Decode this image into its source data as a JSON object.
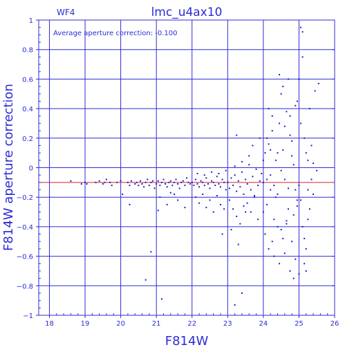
{
  "chart_data": {
    "type": "scatter",
    "title": "lmc_u4ax10",
    "corner_label": "WF4",
    "annotation": "Average aperture correction: -0.100",
    "xlabel": "F814W",
    "ylabel": "F814W aperture correction",
    "xlim": [
      17.7,
      26.0
    ],
    "ylim": [
      -1.0,
      1.0
    ],
    "grid": true,
    "x_ticks": [
      18,
      19,
      20,
      21,
      22,
      23,
      24,
      25,
      26
    ],
    "y_ticks": [
      -1,
      -0.8,
      -0.6,
      -0.4,
      -0.2,
      0,
      0.2,
      0.4,
      0.6,
      0.8,
      1
    ],
    "x_tick_labels": [
      "18",
      "19",
      "20",
      "21",
      "22",
      "23",
      "24",
      "25",
      "26"
    ],
    "y_tick_labels": [
      "−1",
      "−0.8",
      "−0.6",
      "−0.4",
      "−0.2",
      "0",
      "0.2",
      "0.4",
      "0.6",
      "0.8",
      "1"
    ],
    "reference_line": {
      "y": -0.1,
      "color": "#cc2222"
    },
    "axis_color": "#2b2bd6",
    "point_color": "#1a1acc",
    "points": [
      [
        18.6,
        -0.09
      ],
      [
        18.9,
        -0.11
      ],
      [
        19.0,
        -0.1
      ],
      [
        19.05,
        -0.11
      ],
      [
        19.3,
        -0.1
      ],
      [
        19.4,
        -0.09
      ],
      [
        19.5,
        -0.11
      ],
      [
        19.55,
        -0.1
      ],
      [
        19.6,
        -0.08
      ],
      [
        19.7,
        -0.1
      ],
      [
        19.75,
        -0.12
      ],
      [
        19.9,
        -0.1
      ],
      [
        20.0,
        -0.09
      ],
      [
        20.05,
        -0.18
      ],
      [
        20.2,
        -0.1
      ],
      [
        20.25,
        -0.12
      ],
      [
        20.3,
        -0.09
      ],
      [
        20.4,
        -0.11
      ],
      [
        20.45,
        -0.1
      ],
      [
        20.5,
        -0.12
      ],
      [
        20.55,
        -0.09
      ],
      [
        20.6,
        -0.11
      ],
      [
        20.65,
        -0.13
      ],
      [
        20.7,
        -0.1
      ],
      [
        20.75,
        -0.08
      ],
      [
        20.8,
        -0.12
      ],
      [
        20.85,
        -0.1
      ],
      [
        20.9,
        -0.09
      ],
      [
        20.95,
        -0.14
      ],
      [
        20.25,
        -0.25
      ],
      [
        20.7,
        -0.76
      ],
      [
        20.85,
        -0.57
      ],
      [
        21.0,
        -0.11
      ],
      [
        21.05,
        -0.09
      ],
      [
        21.1,
        -0.12
      ],
      [
        21.15,
        -0.1
      ],
      [
        21.2,
        -0.08
      ],
      [
        21.25,
        -0.11
      ],
      [
        21.3,
        -0.13
      ],
      [
        21.35,
        -0.1
      ],
      [
        21.4,
        -0.09
      ],
      [
        21.45,
        -0.12
      ],
      [
        21.5,
        -0.1
      ],
      [
        21.55,
        -0.08
      ],
      [
        21.6,
        -0.11
      ],
      [
        21.65,
        -0.14
      ],
      [
        21.7,
        -0.1
      ],
      [
        21.75,
        -0.09
      ],
      [
        21.8,
        -0.12
      ],
      [
        21.85,
        -0.07
      ],
      [
        21.9,
        -0.1
      ],
      [
        21.95,
        -0.11
      ],
      [
        21.1,
        -0.2
      ],
      [
        21.3,
        -0.25
      ],
      [
        21.5,
        -0.18
      ],
      [
        21.6,
        -0.22
      ],
      [
        21.8,
        -0.27
      ],
      [
        21.05,
        -0.29
      ],
      [
        21.15,
        -0.89
      ],
      [
        21.4,
        -0.17
      ],
      [
        22.0,
        -0.1
      ],
      [
        22.05,
        -0.12
      ],
      [
        22.1,
        -0.08
      ],
      [
        22.15,
        -0.11
      ],
      [
        22.2,
        -0.13
      ],
      [
        22.25,
        -0.09
      ],
      [
        22.3,
        -0.1
      ],
      [
        22.35,
        -0.12
      ],
      [
        22.4,
        -0.07
      ],
      [
        22.45,
        -0.11
      ],
      [
        22.5,
        -0.14
      ],
      [
        22.55,
        -0.09
      ],
      [
        22.6,
        -0.1
      ],
      [
        22.65,
        -0.12
      ],
      [
        22.7,
        -0.06
      ],
      [
        22.75,
        -0.11
      ],
      [
        22.8,
        -0.13
      ],
      [
        22.85,
        -0.08
      ],
      [
        22.9,
        -0.1
      ],
      [
        22.95,
        -0.15
      ],
      [
        22.1,
        -0.2
      ],
      [
        22.2,
        -0.24
      ],
      [
        22.3,
        -0.18
      ],
      [
        22.4,
        -0.27
      ],
      [
        22.5,
        -0.22
      ],
      [
        22.6,
        -0.3
      ],
      [
        22.7,
        -0.19
      ],
      [
        22.8,
        -0.25
      ],
      [
        22.9,
        -0.28
      ],
      [
        22.15,
        -0.04
      ],
      [
        22.35,
        -0.05
      ],
      [
        22.55,
        -0.03
      ],
      [
        22.75,
        -0.04
      ],
      [
        22.85,
        -0.45
      ],
      [
        22.95,
        -0.02
      ],
      [
        23.0,
        -0.1
      ],
      [
        23.05,
        -0.14
      ],
      [
        23.1,
        -0.07
      ],
      [
        23.15,
        -0.12
      ],
      [
        23.2,
        -0.05
      ],
      [
        23.25,
        -0.16
      ],
      [
        23.3,
        -0.09
      ],
      [
        23.35,
        -0.13
      ],
      [
        23.4,
        -0.03
      ],
      [
        23.45,
        -0.18
      ],
      [
        23.5,
        -0.08
      ],
      [
        23.55,
        -0.11
      ],
      [
        23.6,
        0.02
      ],
      [
        23.65,
        -0.15
      ],
      [
        23.7,
        -0.06
      ],
      [
        23.75,
        -0.2
      ],
      [
        23.8,
        -0.01
      ],
      [
        23.85,
        -0.12
      ],
      [
        23.9,
        -0.09
      ],
      [
        23.95,
        -0.04
      ],
      [
        23.05,
        -0.22
      ],
      [
        23.15,
        -0.28
      ],
      [
        23.25,
        -0.33
      ],
      [
        23.35,
        -0.38
      ],
      [
        23.45,
        -0.26
      ],
      [
        23.55,
        -0.24
      ],
      [
        23.65,
        -0.3
      ],
      [
        23.75,
        -0.19
      ],
      [
        23.85,
        -0.35
      ],
      [
        23.1,
        -0.42
      ],
      [
        23.3,
        -0.52
      ],
      [
        23.2,
        0.01
      ],
      [
        23.4,
        0.04
      ],
      [
        23.5,
        -0.3
      ],
      [
        23.25,
        0.22
      ],
      [
        23.4,
        -0.85
      ],
      [
        23.6,
        0.08
      ],
      [
        23.7,
        0.15
      ],
      [
        23.9,
        0.2
      ],
      [
        23.2,
        -0.93
      ],
      [
        24.0,
        -0.1
      ],
      [
        24.05,
        0.1
      ],
      [
        24.1,
        -0.25
      ],
      [
        24.15,
        0.16
      ],
      [
        24.2,
        -0.05
      ],
      [
        24.25,
        0.25
      ],
      [
        24.3,
        -0.35
      ],
      [
        24.35,
        0.05
      ],
      [
        24.4,
        -0.18
      ],
      [
        24.45,
        0.3
      ],
      [
        24.5,
        -0.42
      ],
      [
        24.55,
        0.12
      ],
      [
        24.6,
        -0.08
      ],
      [
        24.65,
        0.38
      ],
      [
        24.7,
        -0.28
      ],
      [
        24.75,
        0.22
      ],
      [
        24.8,
        -0.5
      ],
      [
        24.85,
        0.02
      ],
      [
        24.9,
        -0.15
      ],
      [
        24.95,
        0.45
      ],
      [
        24.0,
        -0.3
      ],
      [
        24.05,
        -0.45
      ],
      [
        24.1,
        0.2
      ],
      [
        24.15,
        -0.55
      ],
      [
        24.2,
        -0.15
      ],
      [
        24.25,
        0.35
      ],
      [
        24.3,
        -0.6
      ],
      [
        24.35,
        -0.2
      ],
      [
        24.4,
        0.1
      ],
      [
        24.45,
        -0.65
      ],
      [
        24.5,
        0.5
      ],
      [
        24.55,
        -0.48
      ],
      [
        24.6,
        0.28
      ],
      [
        24.65,
        -0.38
      ],
      [
        24.7,
        0.6
      ],
      [
        24.75,
        -0.7
      ],
      [
        24.8,
        0.18
      ],
      [
        24.85,
        -0.32
      ],
      [
        24.9,
        0.42
      ],
      [
        24.95,
        -0.22
      ],
      [
        24.0,
        0.05
      ],
      [
        24.1,
        -0.08
      ],
      [
        24.2,
        0.12
      ],
      [
        24.3,
        -0.12
      ],
      [
        24.4,
        -0.4
      ],
      [
        24.5,
        -0.02
      ],
      [
        24.6,
        -0.58
      ],
      [
        24.7,
        -0.14
      ],
      [
        24.8,
        0.08
      ],
      [
        24.9,
        -0.62
      ],
      [
        24.15,
        0.4
      ],
      [
        24.45,
        0.63
      ],
      [
        24.55,
        0.55
      ],
      [
        24.75,
        0.35
      ],
      [
        24.85,
        -0.75
      ],
      [
        24.25,
        -0.5
      ],
      [
        24.65,
        -0.36
      ],
      [
        24.95,
        -0.26
      ],
      [
        25.0,
        -0.12
      ],
      [
        25.05,
        0.3
      ],
      [
        25.1,
        -0.4
      ],
      [
        25.15,
        0.2
      ],
      [
        25.2,
        -0.55
      ],
      [
        25.25,
        0.05
      ],
      [
        25.3,
        -0.28
      ],
      [
        25.35,
        0.15
      ],
      [
        25.4,
        -0.18
      ],
      [
        25.45,
        0.52
      ],
      [
        25.5,
        -0.02
      ],
      [
        25.55,
        0.57
      ],
      [
        25.05,
        0.95
      ],
      [
        25.1,
        0.92
      ],
      [
        25.15,
        -0.65
      ],
      [
        25.2,
        0.1
      ],
      [
        25.25,
        -0.35
      ],
      [
        25.3,
        0.4
      ],
      [
        25.35,
        -0.08
      ],
      [
        25.0,
        0.6
      ],
      [
        25.1,
        0.75
      ],
      [
        25.2,
        -0.7
      ],
      [
        25.05,
        -0.22
      ],
      [
        25.15,
        -0.48
      ],
      [
        25.25,
        -0.15
      ],
      [
        25.0,
        -0.72
      ],
      [
        25.4,
        0.03
      ]
    ]
  }
}
